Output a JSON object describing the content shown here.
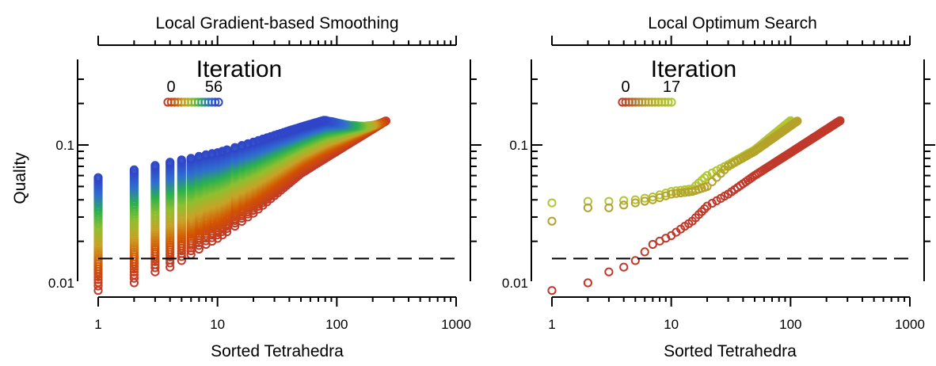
{
  "figure": {
    "ylabel": "Quality",
    "reference_line": {
      "y": 0.015,
      "style": "dashed",
      "color": "#000000"
    }
  },
  "chart_data": [
    {
      "type": "scatter",
      "title": "Local Gradient-based Smoothing",
      "xlabel": "Sorted Tetrahedra",
      "ylabel": "Quality",
      "xscale": "log",
      "yscale": "log",
      "xlim": [
        1,
        1000
      ],
      "ylim": [
        0.0085,
        0.35
      ],
      "xticks": [
        1,
        10,
        100,
        1000
      ],
      "xtick_labels": [
        "1",
        "10",
        "100",
        "1000"
      ],
      "yticks": [
        0.01,
        0.1
      ],
      "ytick_labels": [
        "0.01",
        "0.1"
      ],
      "top_axis_ticks": true,
      "grid": false,
      "colorbar": {
        "title": "Iteration",
        "min_label": "0",
        "max_label": "56",
        "min": 0,
        "max": 56,
        "colors": [
          "#c0392b",
          "#d35400",
          "#c9a227",
          "#8fbf2f",
          "#2bb24c",
          "#2f6fd0",
          "#3045c8"
        ]
      },
      "iterations": 57,
      "n_points": 260,
      "series": [
        {
          "iteration": 0,
          "x": [
            1,
            2,
            3,
            4,
            5,
            6,
            8,
            10,
            20,
            50,
            100,
            260
          ],
          "y": [
            0.0088,
            0.01,
            0.012,
            0.013,
            0.0145,
            0.016,
            0.019,
            0.021,
            0.032,
            0.062,
            0.09,
            0.15
          ]
        },
        {
          "iteration": 56,
          "x": [
            1,
            2,
            3,
            4,
            5,
            6,
            8,
            10,
            20,
            50,
            80
          ],
          "y": [
            0.058,
            0.066,
            0.071,
            0.075,
            0.078,
            0.08,
            0.085,
            0.088,
            0.105,
            0.135,
            0.152
          ]
        }
      ]
    },
    {
      "type": "scatter",
      "title": "Local Optimum Search",
      "xlabel": "Sorted Tetrahedra",
      "ylabel": "",
      "xscale": "log",
      "yscale": "log",
      "xlim": [
        1,
        1000
      ],
      "ylim": [
        0.0085,
        0.35
      ],
      "xticks": [
        1,
        10,
        100,
        1000
      ],
      "xtick_labels": [
        "1",
        "10",
        "100",
        "1000"
      ],
      "yticks": [
        0.01,
        0.1
      ],
      "ytick_labels": [
        "0.01",
        "0.1"
      ],
      "top_axis_ticks": true,
      "grid": false,
      "colorbar": {
        "title": "Iteration",
        "min_label": "0",
        "max_label": "17",
        "min": 0,
        "max": 17,
        "colors": [
          "#c0392b",
          "#b5a02a",
          "#b0c632"
        ]
      },
      "series": [
        {
          "iteration": 0,
          "x": [
            1,
            2,
            3,
            4,
            5,
            7,
            10,
            15,
            20,
            30,
            50,
            100,
            260
          ],
          "y": [
            0.0088,
            0.01,
            0.012,
            0.013,
            0.0145,
            0.019,
            0.022,
            0.028,
            0.036,
            0.044,
            0.06,
            0.088,
            0.15
          ]
        },
        {
          "iteration": 17,
          "x": [
            1,
            2,
            3,
            5,
            7,
            10,
            15,
            20,
            30,
            50,
            100
          ],
          "y": [
            0.038,
            0.039,
            0.039,
            0.04,
            0.042,
            0.046,
            0.048,
            0.06,
            0.072,
            0.092,
            0.15
          ]
        },
        {
          "iteration": 9,
          "x": [
            1,
            2,
            3,
            5,
            7,
            10,
            15,
            20,
            30,
            50,
            115
          ],
          "y": [
            0.028,
            0.035,
            0.035,
            0.038,
            0.04,
            0.044,
            0.046,
            0.05,
            0.07,
            0.09,
            0.15
          ]
        }
      ]
    }
  ]
}
